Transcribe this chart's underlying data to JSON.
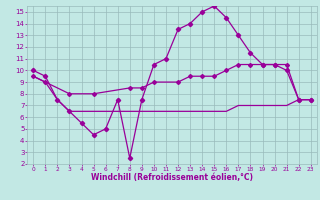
{
  "xlabel": "Windchill (Refroidissement éolien,°C)",
  "bg_color": "#c2e8e4",
  "line_color": "#990099",
  "grid_color": "#99bbbb",
  "xlim": [
    -0.5,
    23.5
  ],
  "ylim": [
    2,
    15.5
  ],
  "yticks": [
    2,
    3,
    4,
    5,
    6,
    7,
    8,
    9,
    10,
    11,
    12,
    13,
    14,
    15
  ],
  "xticks": [
    0,
    1,
    2,
    3,
    4,
    5,
    6,
    7,
    8,
    9,
    10,
    11,
    12,
    13,
    14,
    15,
    16,
    17,
    18,
    19,
    20,
    21,
    22,
    23
  ],
  "line1_x": [
    0,
    1,
    2,
    3,
    4,
    5,
    6,
    7,
    8,
    9,
    10,
    11,
    12,
    13,
    14,
    15,
    16,
    17,
    18,
    19,
    20,
    21,
    22,
    23
  ],
  "line1_y": [
    10.0,
    9.5,
    7.5,
    6.5,
    5.5,
    4.5,
    5.0,
    7.5,
    2.5,
    7.5,
    10.5,
    11.0,
    13.5,
    14.0,
    15.0,
    15.5,
    14.5,
    13.0,
    11.5,
    10.5,
    10.5,
    10.0,
    7.5,
    7.5
  ],
  "line2_x": [
    0,
    1,
    3,
    5,
    8,
    9,
    10,
    12,
    13,
    14,
    15,
    16,
    17,
    18,
    19,
    20,
    21,
    22,
    23
  ],
  "line2_y": [
    9.5,
    9.0,
    8.0,
    8.0,
    8.5,
    8.5,
    9.0,
    9.0,
    9.5,
    9.5,
    9.5,
    10.0,
    10.5,
    10.5,
    10.5,
    10.5,
    10.5,
    7.5,
    7.5
  ],
  "line3_x": [
    0,
    1,
    2,
    3,
    4,
    5,
    6,
    7,
    8,
    9,
    10,
    11,
    12,
    13,
    14,
    15,
    16,
    17,
    18,
    19,
    20,
    21,
    22,
    23
  ],
  "line3_y": [
    9.5,
    9.0,
    7.5,
    6.5,
    6.5,
    6.5,
    6.5,
    6.5,
    6.5,
    6.5,
    6.5,
    6.5,
    6.5,
    6.5,
    6.5,
    6.5,
    6.5,
    7.0,
    7.0,
    7.0,
    7.0,
    7.0,
    7.5,
    7.5
  ]
}
